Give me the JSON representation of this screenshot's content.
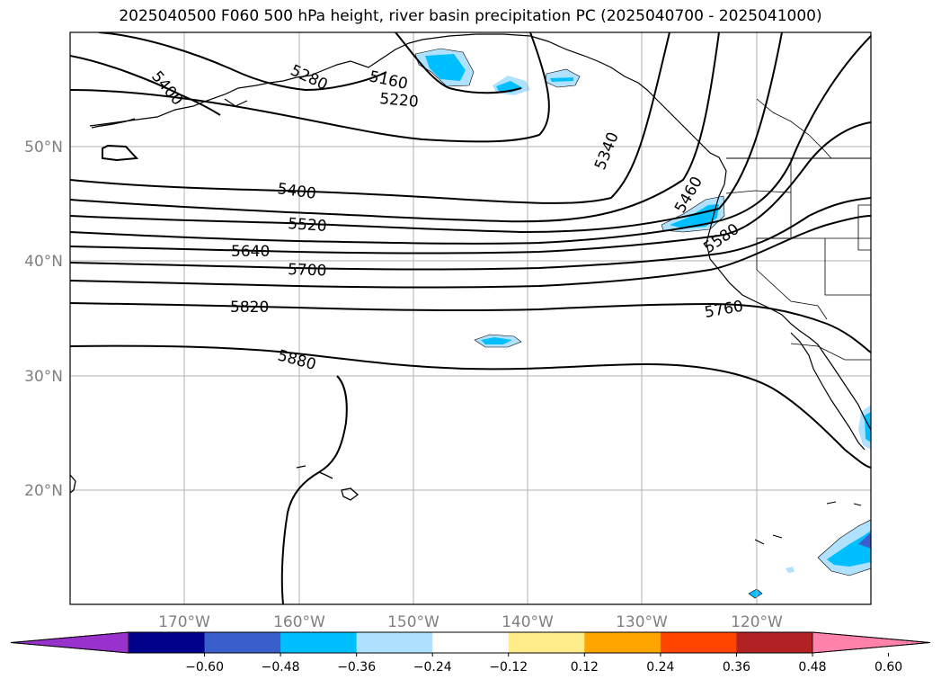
{
  "title": "2025040500 F060 500 hPa height, river basin precipitation PC (2025040700 - 2025041000)",
  "latitude_labels": [
    "50°N",
    "40°N",
    "30°N",
    "20°N"
  ],
  "longitude_labels": [
    "170°W",
    "160°W",
    "150°W",
    "140°W",
    "130°W",
    "120°W"
  ],
  "contour_labels": [
    "5400",
    "5280",
    "5160",
    "5220",
    "5340",
    "5460",
    "5400",
    "5520",
    "5640",
    "5700",
    "5580",
    "5820",
    "5760",
    "5880"
  ],
  "colorbar": {
    "ticks": [
      "−0.60",
      "−0.48",
      "−0.36",
      "−0.24",
      "−0.12",
      "0.12",
      "0.24",
      "0.36",
      "0.48",
      "0.60"
    ],
    "colors": [
      "#9932cc",
      "#00008b",
      "#3a5fcd",
      "#00bfff",
      "#b0e2ff",
      "#ffffff",
      "#ffec8b",
      "#ffa500",
      "#ff4500",
      "#b22222",
      "#ff82ab"
    ]
  },
  "colors": {
    "frame": "#000000",
    "grid": "#b0b0b0",
    "label_gray": "#808080"
  }
}
